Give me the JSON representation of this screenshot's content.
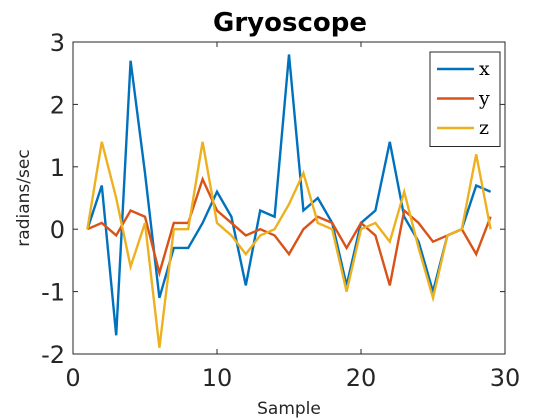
{
  "chart_data": {
    "type": "line",
    "title": "Gryoscope",
    "xlabel": "Sample",
    "ylabel": "radians/sec",
    "xlim": [
      0,
      30
    ],
    "ylim": [
      -2,
      3
    ],
    "xticks": [
      0,
      10,
      20,
      30
    ],
    "yticks": [
      -2,
      -1,
      0,
      1,
      2,
      3
    ],
    "grid": false,
    "legend_position": "top-right",
    "x": [
      1,
      2,
      3,
      4,
      5,
      6,
      7,
      8,
      9,
      10,
      11,
      12,
      13,
      14,
      15,
      16,
      17,
      18,
      19,
      20,
      21,
      22,
      23,
      24,
      25,
      26,
      27,
      28,
      29
    ],
    "series": [
      {
        "name": "x",
        "color": "#0072BD",
        "values": [
          0.0,
          0.7,
          -1.7,
          2.7,
          0.9,
          -1.1,
          -0.3,
          -0.3,
          0.1,
          0.6,
          0.2,
          -0.9,
          0.3,
          0.2,
          2.8,
          0.3,
          0.5,
          0.1,
          -0.9,
          0.1,
          0.3,
          1.4,
          0.2,
          -0.2,
          -1.0,
          -0.1,
          0.0,
          0.7,
          0.6
        ]
      },
      {
        "name": "y",
        "color": "#D95319",
        "values": [
          0.0,
          0.1,
          -0.1,
          0.3,
          0.2,
          -0.7,
          0.1,
          0.1,
          0.8,
          0.3,
          0.1,
          -0.1,
          0.0,
          -0.1,
          -0.4,
          0.0,
          0.2,
          0.1,
          -0.3,
          0.1,
          -0.1,
          -0.9,
          0.3,
          0.1,
          -0.2,
          -0.1,
          0.0,
          -0.4,
          0.2
        ]
      },
      {
        "name": "z",
        "color": "#EDB120",
        "values": [
          0.0,
          1.4,
          0.5,
          -0.6,
          0.1,
          -1.9,
          0.0,
          0.0,
          1.4,
          0.1,
          -0.1,
          -0.4,
          -0.1,
          0.0,
          0.4,
          0.9,
          0.1,
          0.0,
          -1.0,
          0.0,
          0.1,
          -0.2,
          0.6,
          -0.3,
          -1.1,
          -0.1,
          0.0,
          1.2,
          0.0
        ]
      }
    ]
  }
}
